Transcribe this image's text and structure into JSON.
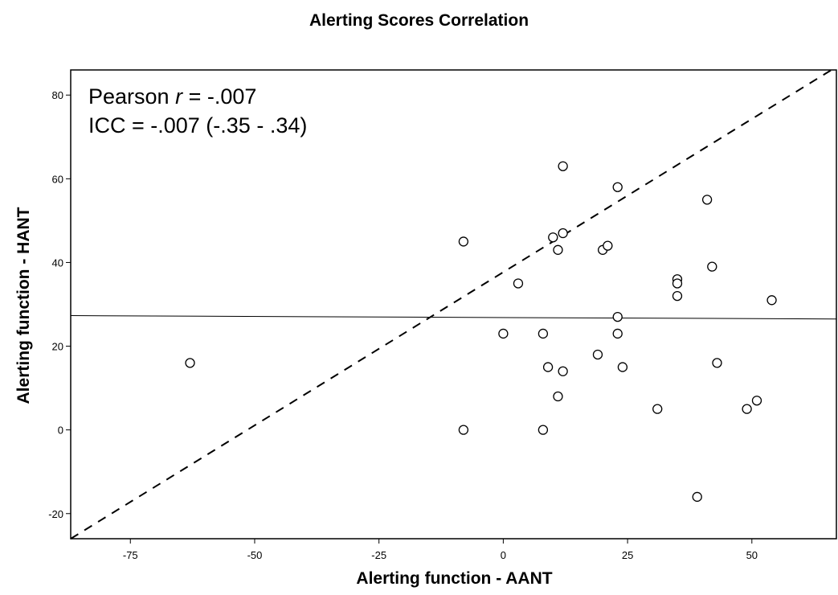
{
  "chart_data": {
    "type": "scatter",
    "title": "Alerting Scores Correlation",
    "xlabel": "Alerting function - AANT",
    "ylabel": "Alerting function - HANT",
    "xlim": [
      -87,
      67
    ],
    "ylim": [
      -26,
      86
    ],
    "x_ticks": [
      -75,
      -50,
      -25,
      0,
      25,
      50
    ],
    "y_ticks": [
      -20,
      0,
      20,
      40,
      60,
      80
    ],
    "grid": false,
    "annotation": {
      "pearson_prefix": "Pearson ",
      "pearson_r": "r",
      "pearson_value": " = -.007",
      "icc": "ICC = -.007 (-.35 - .34)"
    },
    "identity_line": {
      "from": [
        -87,
        -26
      ],
      "to": [
        66,
        86
      ]
    },
    "mean_line": {
      "y_left": 27.3,
      "y_right": 26.5
    },
    "points": [
      {
        "x": -63,
        "y": 16
      },
      {
        "x": -8,
        "y": 45
      },
      {
        "x": -8,
        "y": 0
      },
      {
        "x": 0,
        "y": 23
      },
      {
        "x": 3,
        "y": 35
      },
      {
        "x": 8,
        "y": 23
      },
      {
        "x": 8,
        "y": 0
      },
      {
        "x": 9,
        "y": 15
      },
      {
        "x": 10,
        "y": 46
      },
      {
        "x": 11,
        "y": 43
      },
      {
        "x": 11,
        "y": 8
      },
      {
        "x": 12,
        "y": 47
      },
      {
        "x": 12,
        "y": 14
      },
      {
        "x": 12,
        "y": 63
      },
      {
        "x": 19,
        "y": 18
      },
      {
        "x": 20,
        "y": 43
      },
      {
        "x": 21,
        "y": 44
      },
      {
        "x": 23,
        "y": 58
      },
      {
        "x": 23,
        "y": 27
      },
      {
        "x": 23,
        "y": 23
      },
      {
        "x": 24,
        "y": 15
      },
      {
        "x": 31,
        "y": 5
      },
      {
        "x": 35,
        "y": 36
      },
      {
        "x": 35,
        "y": 35
      },
      {
        "x": 35,
        "y": 32
      },
      {
        "x": 39,
        "y": -16
      },
      {
        "x": 41,
        "y": 55
      },
      {
        "x": 42,
        "y": 39
      },
      {
        "x": 43,
        "y": 16
      },
      {
        "x": 49,
        "y": 5
      },
      {
        "x": 51,
        "y": 7
      },
      {
        "x": 54,
        "y": 31
      }
    ]
  }
}
